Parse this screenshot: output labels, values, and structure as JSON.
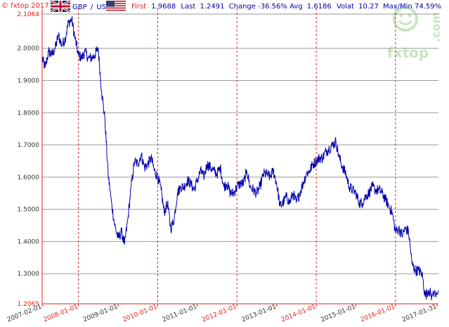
{
  "header": {
    "copyright": "© fxtop 2017",
    "pair_base": "GBP",
    "pair_sep": "/",
    "pair_quote": "USD",
    "stats": [
      {
        "label": "First",
        "value": "1.9688"
      },
      {
        "label": "Last",
        "value": "1.2491"
      },
      {
        "label": "Change",
        "value": "-36.56%"
      },
      {
        "label": "Avg",
        "value": "1.6186"
      },
      {
        "label": "Volat",
        "value": "10.27"
      },
      {
        "label": "Max/Min",
        "value": "74.59%"
      }
    ]
  },
  "logo": {
    "text": "fxtop",
    "suffix": ".com"
  },
  "colors": {
    "line": "#0000aa",
    "axis": "#dd2222",
    "grid_h": "#999999",
    "grid_v": "#dd2222",
    "label_red": "#dd2222",
    "label_blue": "#0000aa",
    "logo": "#c8e6c0",
    "flag_uk_blue": "#012169",
    "flag_uk_red": "#c8102e",
    "flag_us_red": "#b22234",
    "flag_us_blue": "#3c3b6e"
  },
  "chart_data": {
    "type": "line",
    "title": "",
    "xlabel": "",
    "ylabel": "",
    "ylim": [
      1.2065,
      2.1064
    ],
    "yticks": [
      "1.2065",
      "1.3000",
      "1.4000",
      "1.5000",
      "1.6000",
      "1.7000",
      "1.8000",
      "1.9000",
      "2.0000",
      "2.1064"
    ],
    "ytick_values": [
      1.2065,
      1.3,
      1.4,
      1.5,
      1.6,
      1.7,
      1.8,
      1.9,
      2.0,
      2.1064
    ],
    "xlim": [
      "2007-02-01",
      "2017-01-31"
    ],
    "xticks": [
      "2007-02-01",
      "2008-01-01",
      "2009-01-01",
      "2010-01-01",
      "2011-01-01",
      "2012-01-01",
      "2013-01-01",
      "2014-01-01",
      "2015-01-01",
      "2016-01-01",
      "2017-01-31"
    ],
    "red_gridlines": [
      "2008-01-01",
      "2010-01-01",
      "2012-01-01",
      "2014-01-01",
      "2016-01-01"
    ],
    "grid": true,
    "series": [
      {
        "x": [
          "2007-02-01",
          "2007-03-01",
          "2007-04-01",
          "2007-05-01",
          "2007-06-01",
          "2007-07-01",
          "2007-08-01",
          "2007-09-01",
          "2007-10-01",
          "2007-11-01",
          "2007-12-01",
          "2008-01-01",
          "2008-02-01",
          "2008-03-01",
          "2008-04-01",
          "2008-05-01",
          "2008-06-01",
          "2008-07-01",
          "2008-08-01",
          "2008-09-01",
          "2008-10-01",
          "2008-11-01",
          "2008-12-01",
          "2009-01-01",
          "2009-02-01",
          "2009-03-01",
          "2009-04-01",
          "2009-05-01",
          "2009-06-01",
          "2009-07-01",
          "2009-08-01",
          "2009-09-01",
          "2009-10-01",
          "2009-11-01",
          "2009-12-01",
          "2010-01-01",
          "2010-02-01",
          "2010-03-01",
          "2010-04-01",
          "2010-05-01",
          "2010-06-01",
          "2010-07-01",
          "2010-08-01",
          "2010-09-01",
          "2010-10-01",
          "2010-11-01",
          "2010-12-01",
          "2011-01-01",
          "2011-02-01",
          "2011-03-01",
          "2011-04-01",
          "2011-05-01",
          "2011-06-01",
          "2011-07-01",
          "2011-08-01",
          "2011-09-01",
          "2011-10-01",
          "2011-11-01",
          "2011-12-01",
          "2012-01-01",
          "2012-02-01",
          "2012-03-01",
          "2012-04-01",
          "2012-05-01",
          "2012-06-01",
          "2012-07-01",
          "2012-08-01",
          "2012-09-01",
          "2012-10-01",
          "2012-11-01",
          "2012-12-01",
          "2013-01-01",
          "2013-02-01",
          "2013-03-01",
          "2013-04-01",
          "2013-05-01",
          "2013-06-01",
          "2013-07-01",
          "2013-08-01",
          "2013-09-01",
          "2013-10-01",
          "2013-11-01",
          "2013-12-01",
          "2014-01-01",
          "2014-02-01",
          "2014-03-01",
          "2014-04-01",
          "2014-05-01",
          "2014-06-01",
          "2014-07-01",
          "2014-08-01",
          "2014-09-01",
          "2014-10-01",
          "2014-11-01",
          "2014-12-01",
          "2015-01-01",
          "2015-02-01",
          "2015-03-01",
          "2015-04-01",
          "2015-05-01",
          "2015-06-01",
          "2015-07-01",
          "2015-08-01",
          "2015-09-01",
          "2015-10-01",
          "2015-11-01",
          "2015-12-01",
          "2016-01-01",
          "2016-02-01",
          "2016-03-01",
          "2016-04-01",
          "2016-05-01",
          "2016-06-01",
          "2016-07-01",
          "2016-08-01",
          "2016-09-01",
          "2016-10-01",
          "2016-11-01",
          "2016-12-01",
          "2017-01-31"
        ],
        "values": [
          1.9688,
          1.94,
          1.99,
          1.98,
          2.0,
          2.04,
          2.01,
          2.03,
          2.08,
          2.09,
          2.03,
          1.98,
          1.97,
          1.99,
          1.97,
          1.97,
          1.98,
          2.0,
          1.87,
          1.78,
          1.61,
          1.52,
          1.45,
          1.41,
          1.43,
          1.39,
          1.47,
          1.57,
          1.65,
          1.64,
          1.67,
          1.63,
          1.64,
          1.66,
          1.62,
          1.6,
          1.56,
          1.49,
          1.52,
          1.44,
          1.47,
          1.55,
          1.57,
          1.57,
          1.59,
          1.58,
          1.56,
          1.59,
          1.62,
          1.6,
          1.64,
          1.63,
          1.62,
          1.61,
          1.63,
          1.57,
          1.58,
          1.55,
          1.55,
          1.57,
          1.58,
          1.58,
          1.62,
          1.57,
          1.56,
          1.55,
          1.57,
          1.61,
          1.61,
          1.6,
          1.62,
          1.58,
          1.51,
          1.52,
          1.54,
          1.52,
          1.55,
          1.52,
          1.55,
          1.58,
          1.61,
          1.62,
          1.64,
          1.65,
          1.66,
          1.66,
          1.68,
          1.69,
          1.7,
          1.71,
          1.66,
          1.63,
          1.61,
          1.57,
          1.56,
          1.55,
          1.52,
          1.52,
          1.54,
          1.55,
          1.57,
          1.56,
          1.56,
          1.55,
          1.53,
          1.51,
          1.49,
          1.43,
          1.44,
          1.42,
          1.44,
          1.43,
          1.33,
          1.31,
          1.31,
          1.3,
          1.23,
          1.25,
          1.23,
          1.2491
        ]
      }
    ]
  }
}
